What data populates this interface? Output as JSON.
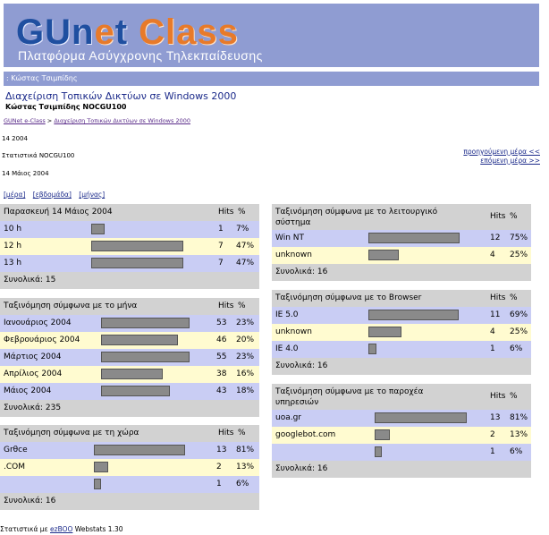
{
  "header": {
    "logo_part1": "GUn",
    "logo_part2": "e",
    "logo_part3": "t ",
    "logo_part4": "Class",
    "subtitle": "Πλατφόρμα Ασύγχρονης Τηλεκπαίδευσης"
  },
  "userbar": ": Κώστας Τσιμπίδης",
  "course": {
    "title": "Διαχείριση Τοπικών Δικτύων σε Windows 2000",
    "subtitle": "Κώστας Τσιμπίδης NOCGU100"
  },
  "breadcrumb": {
    "home": "GUNet e-Class",
    "separator": " > ",
    "course": "Διαχείριση Τοπικών Δικτύων σε Windows 2000"
  },
  "date_line": "14 2004",
  "stats_title": "Στατιστικά NOCGU100",
  "current_date": "14 Μάιος 2004",
  "nav": {
    "previous": "προηγούμενη μέρα <<",
    "next": "επόμενη μέρα >>"
  },
  "periods": [
    "[μέρα]",
    "[εβδομάδα]",
    "[μήνας]"
  ],
  "tables": {
    "day": {
      "title": "Παρασκευή 14 Μάιος 2004",
      "hits_label": "Hits",
      "pct_label": "%",
      "rows": [
        {
          "label": "10 h",
          "hits": "1",
          "pct": "7%",
          "share": 0.07
        },
        {
          "label": "12 h",
          "hits": "7",
          "pct": "47%",
          "share": 0.47
        },
        {
          "label": "13 h",
          "hits": "7",
          "pct": "47%",
          "share": 0.47
        }
      ],
      "total": "Συνολικά: 15"
    },
    "month": {
      "title": "Ταξινόμηση σύμφωνα με το μήνα",
      "hits_label": "Hits",
      "pct_label": "%",
      "rows": [
        {
          "label": "Ιανουάριος 2004",
          "hits": "53",
          "pct": "23%",
          "share": 0.23
        },
        {
          "label": "Φεβρουάριος 2004",
          "hits": "46",
          "pct": "20%",
          "share": 0.2
        },
        {
          "label": "Μάρτιος 2004",
          "hits": "55",
          "pct": "23%",
          "share": 0.23
        },
        {
          "label": "Απρίλιος 2004",
          "hits": "38",
          "pct": "16%",
          "share": 0.16
        },
        {
          "label": "Μάιος 2004",
          "hits": "43",
          "pct": "18%",
          "share": 0.18
        }
      ],
      "total": "Συνολικά: 235"
    },
    "country": {
      "title": "Ταξινόμηση σύμφωνα με τη χώρα",
      "hits_label": "Hits",
      "pct_label": "%",
      "rows": [
        {
          "label": "Grθce",
          "hits": "13",
          "pct": "81%",
          "share": 0.81
        },
        {
          "label": ".COM",
          "hits": "2",
          "pct": "13%",
          "share": 0.13
        },
        {
          "label": "",
          "hits": "1",
          "pct": "6%",
          "share": 0.06
        }
      ],
      "total": "Συνολικά: 16"
    },
    "os": {
      "title_line1": "Ταξινόμηση σύμφωνα με το λειτουργικό",
      "title_line2": "σύστημα",
      "hits_label": "Hits",
      "pct_label": "%",
      "rows": [
        {
          "label": "Win NT",
          "hits": "12",
          "pct": "75%",
          "share": 0.75
        },
        {
          "label": "unknown",
          "hits": "4",
          "pct": "25%",
          "share": 0.25
        }
      ],
      "total": "Συνολικά: 16"
    },
    "browser": {
      "title": "Ταξινόμηση σύμφωνα με το Browser",
      "hits_label": "Hits",
      "pct_label": "%",
      "rows": [
        {
          "label": "IE 5.0",
          "hits": "11",
          "pct": "69%",
          "share": 0.69
        },
        {
          "label": "unknown",
          "hits": "4",
          "pct": "25%",
          "share": 0.25
        },
        {
          "label": "IE 4.0",
          "hits": "1",
          "pct": "6%",
          "share": 0.06
        }
      ],
      "total": "Συνολικά: 16"
    },
    "provider": {
      "title_line1": "Ταξινόμηση σύμφωνα με το παροχέα",
      "title_line2": "υπηρεσιών",
      "hits_label": "Hits",
      "pct_label": "%",
      "rows": [
        {
          "label": "uoa.gr",
          "hits": "13",
          "pct": "81%",
          "share": 0.81
        },
        {
          "label": "googlebot.com",
          "hits": "2",
          "pct": "13%",
          "share": 0.13
        },
        {
          "label": "",
          "hits": "1",
          "pct": "6%",
          "share": 0.06
        }
      ],
      "total": "Συνολικά: 16"
    }
  },
  "footer": {
    "prefix": "Στατιστικά με ",
    "link": "ezBOO",
    "suffix": " Webstats 1.30"
  }
}
